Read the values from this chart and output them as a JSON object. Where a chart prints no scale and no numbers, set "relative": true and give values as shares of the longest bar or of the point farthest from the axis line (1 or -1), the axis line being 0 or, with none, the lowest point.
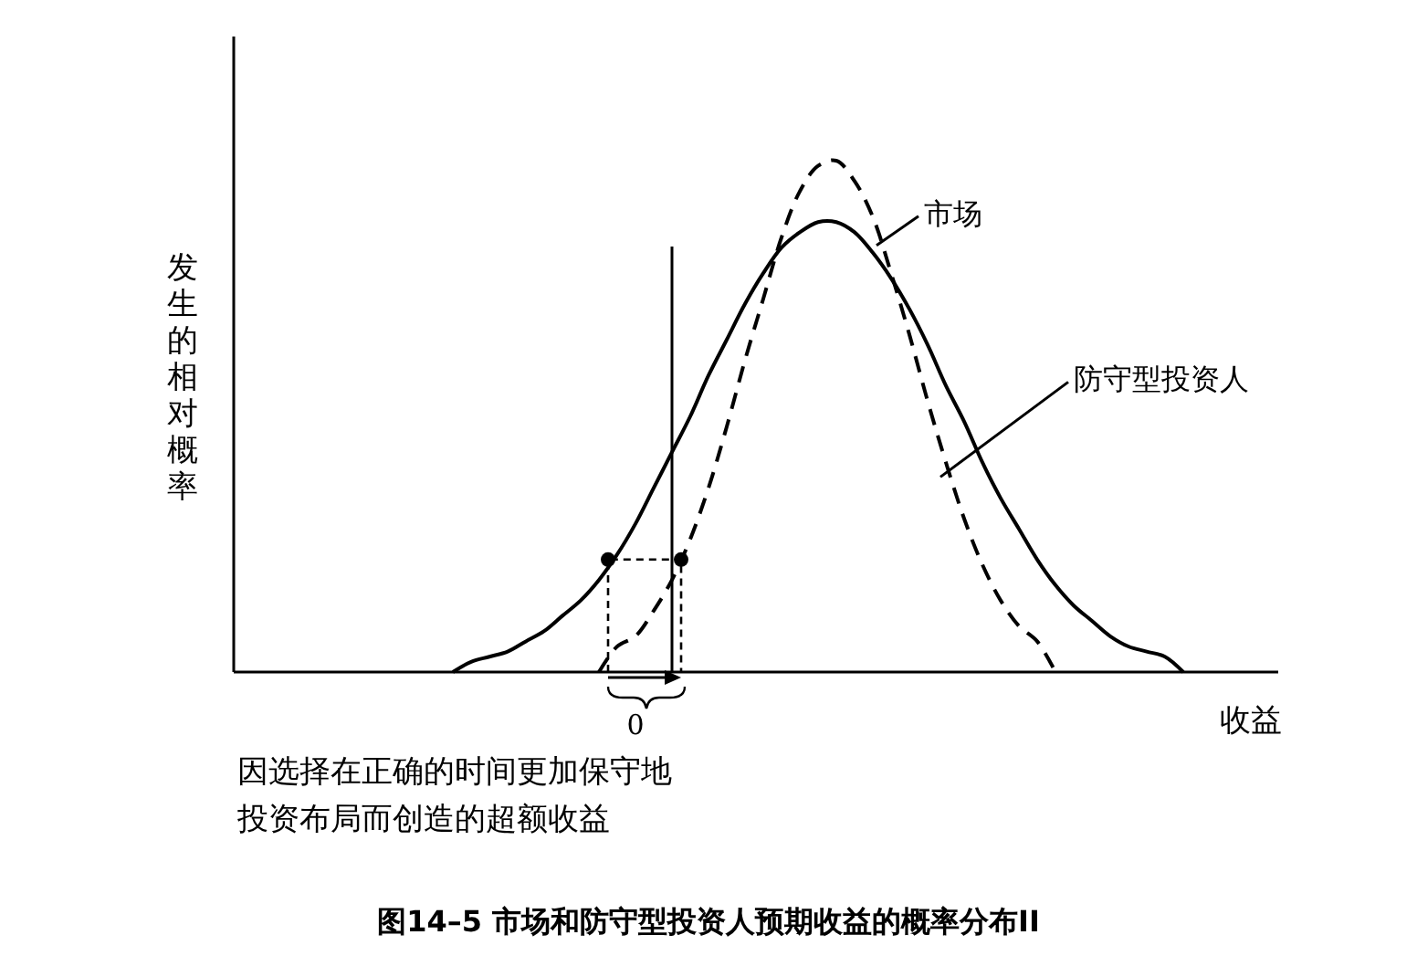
{
  "chart_data": {
    "type": "line",
    "relative": true,
    "title": "图14–5 市场和防守型投资人预期收益的概率分布II",
    "xlabel": "收益",
    "ylabel": "发生的相对概率",
    "categories": [
      null,
      null,
      null,
      null,
      null,
      null,
      null,
      null,
      null,
      null,
      null,
      null,
      null,
      null,
      null,
      null,
      null,
      null,
      null,
      null,
      null,
      null,
      null,
      null,
      null,
      null,
      null,
      null,
      null,
      null,
      null,
      null,
      null,
      null,
      null,
      null,
      null,
      null,
      null,
      null,
      null,
      null,
      null,
      null,
      null,
      null,
      null,
      null,
      null,
      null,
      null,
      null,
      null,
      null,
      null,
      null,
      null,
      null
    ],
    "series": [
      {
        "name": "市场",
        "color": "#000000",
        "line_style": "solid",
        "values": [
          null,
          null,
          null,
          null,
          null,
          null,
          null,
          null,
          null,
          null,
          null,
          null,
          0,
          0.02,
          0.03,
          0.04,
          0.06,
          0.08,
          0.11,
          0.14,
          0.18,
          0.23,
          0.29,
          0.36,
          0.43,
          0.5,
          0.58,
          0.65,
          0.72,
          0.78,
          0.83,
          0.86,
          0.88,
          0.88,
          0.86,
          0.82,
          0.77,
          0.71,
          0.64,
          0.56,
          0.49,
          0.41,
          0.34,
          0.28,
          0.22,
          0.17,
          0.13,
          0.1,
          0.07,
          0.05,
          0.04,
          0.03,
          0,
          null,
          null,
          null,
          null,
          null
        ]
      },
      {
        "name": "防守型投资人",
        "color": "#000000",
        "line_style": "dashed",
        "values": [
          null,
          null,
          null,
          null,
          null,
          null,
          null,
          null,
          null,
          null,
          null,
          null,
          null,
          null,
          null,
          null,
          null,
          null,
          null,
          null,
          0,
          0.05,
          0.07,
          0.12,
          0.18,
          0.26,
          0.36,
          0.48,
          0.61,
          0.73,
          0.85,
          0.94,
          0.99,
          1,
          0.96,
          0.89,
          0.78,
          0.66,
          0.53,
          0.41,
          0.3,
          0.21,
          0.14,
          0.09,
          0.06,
          0,
          null,
          null,
          null,
          null,
          null,
          null,
          null,
          null,
          null,
          null,
          null,
          null
        ]
      }
    ],
    "annotations": [
      "0",
      "因选择在正确的时间更加保守地投资布局而创造的超额收益"
    ],
    "marker": "none",
    "grid": false
  }
}
